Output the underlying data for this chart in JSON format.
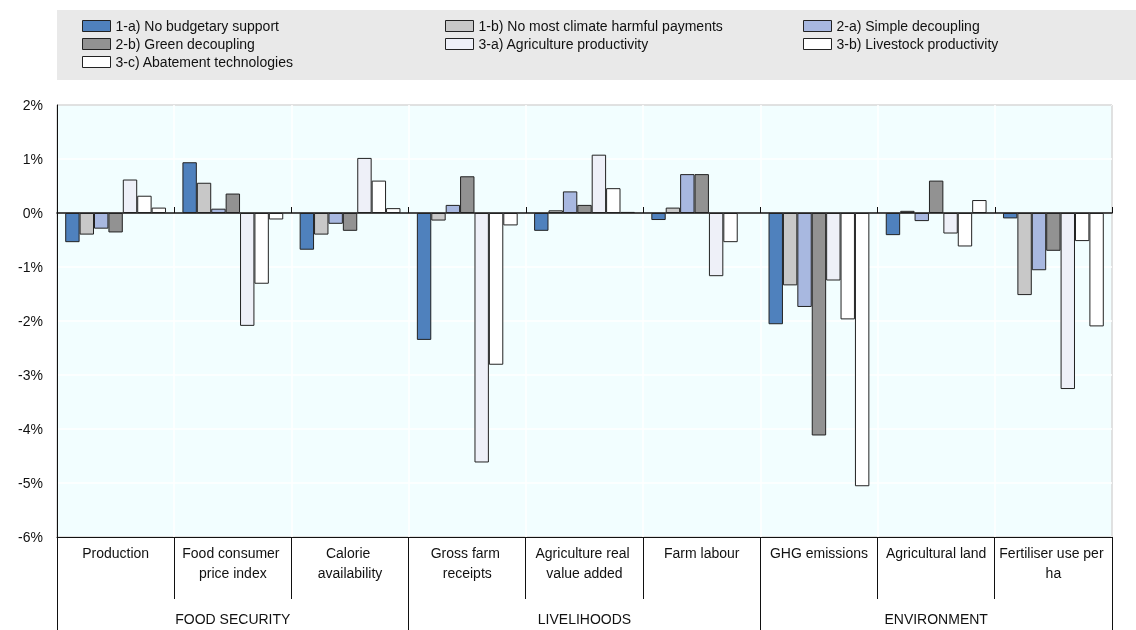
{
  "chart_data": {
    "type": "bar",
    "categories": [
      "Production",
      "Food consumer price index",
      "Calorie availability",
      "Gross farm receipts",
      "Agriculture real value added",
      "Farm labour",
      "GHG emissions",
      "Agricultural land",
      "Fertiliser use per ha"
    ],
    "series": [
      {
        "name": "1-a) No budgetary support",
        "color": "#4f81bd",
        "values": [
          -0.54,
          0.94,
          -0.68,
          -2.35,
          -0.33,
          -0.13,
          -2.06,
          -0.41,
          -0.1
        ]
      },
      {
        "name": "1-b) No most climate harmful payments",
        "color": "#c8c8c8",
        "values": [
          -0.4,
          0.56,
          -0.4,
          -0.14,
          0.05,
          0.1,
          -1.34,
          0.04,
          -1.52
        ]
      },
      {
        "name": "2-a) Simple decoupling",
        "color": "#a8b8e0",
        "values": [
          -0.29,
          0.08,
          -0.2,
          0.15,
          0.4,
          0.72,
          -1.74,
          -0.15,
          -1.06
        ]
      },
      {
        "name": "2-b) Green decoupling",
        "color": "#929292",
        "values": [
          -0.36,
          0.36,
          -0.33,
          0.68,
          0.15,
          0.72,
          -4.12,
          0.6,
          -0.7
        ]
      },
      {
        "name": "3-a) Agriculture productivity",
        "color": "#eef0f8",
        "values": [
          0.62,
          -2.09,
          1.02,
          -4.62,
          1.08,
          -1.17,
          -1.25,
          -0.38,
          -3.26
        ]
      },
      {
        "name": "3-b) Livestock productivity",
        "color": "#ffffff",
        "values": [
          0.32,
          -1.31,
          0.6,
          -2.81,
          0.46,
          -0.54,
          -1.97,
          -0.62,
          -0.52
        ]
      },
      {
        "name": "3-c) Abatement technologies",
        "color": "#ffffff",
        "values": [
          0.1,
          -0.12,
          0.09,
          -0.23,
          0.02,
          null,
          -5.06,
          0.24,
          -2.1
        ]
      }
    ],
    "ylim": [
      -6,
      2
    ],
    "yticks": [
      {
        "value": -6,
        "label": "-6%"
      },
      {
        "value": -5,
        "label": "-5%"
      },
      {
        "value": -4,
        "label": "-4%"
      },
      {
        "value": -3,
        "label": "-3%"
      },
      {
        "value": -2,
        "label": "-2%"
      },
      {
        "value": -1,
        "label": "-1%"
      },
      {
        "value": 0,
        "label": "0%"
      },
      {
        "value": 1,
        "label": "1%"
      },
      {
        "value": 2,
        "label": "2%"
      }
    ],
    "annotations": [
      "FOOD SECURITY",
      "LIVELIHOODS",
      "ENVIRONMENT"
    ],
    "grid": true,
    "legend": "top"
  }
}
